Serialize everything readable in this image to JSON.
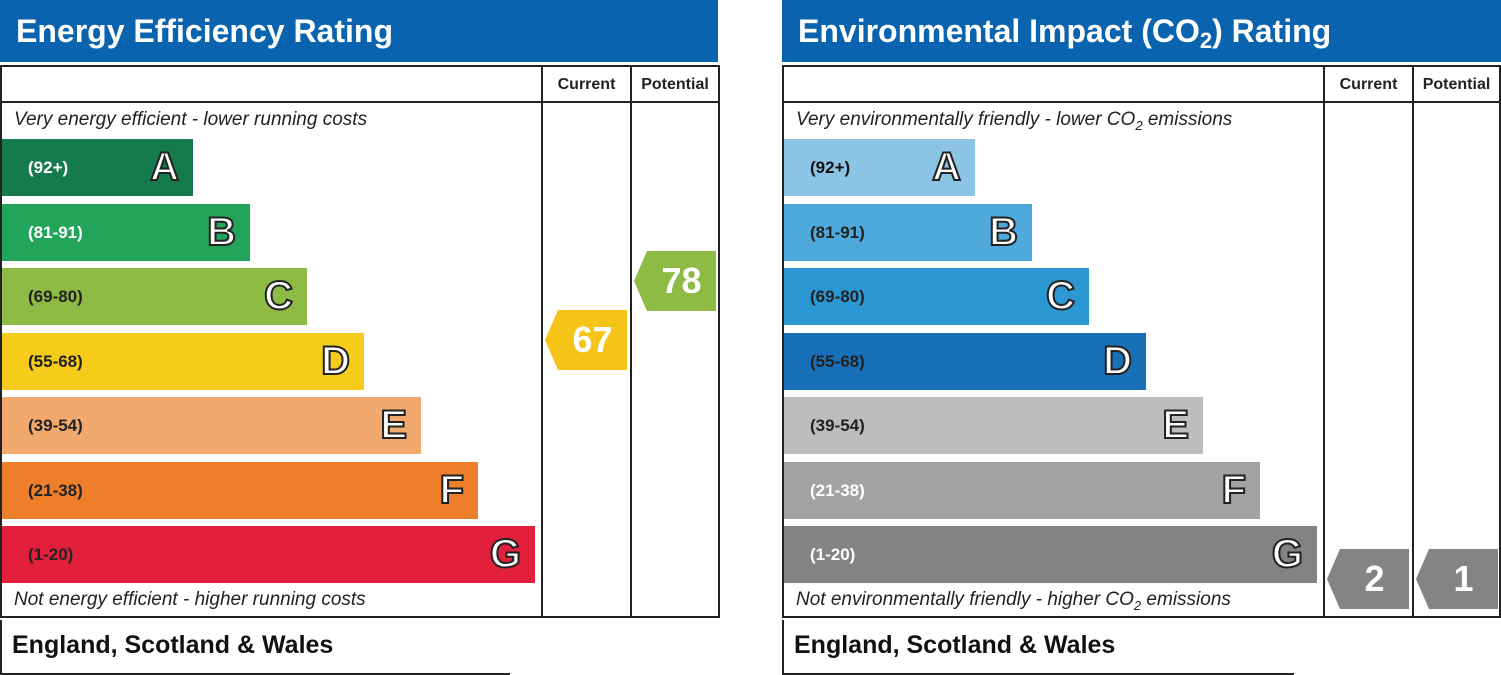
{
  "chart_data": [
    {
      "type": "bar",
      "title": "Energy Efficiency Rating",
      "columns": [
        "Current",
        "Potential"
      ],
      "top_text": "Very energy efficient - lower running costs",
      "bottom_text": "Not energy efficient - higher running costs",
      "footer": "England, Scotland & Wales",
      "bands": [
        {
          "letter": "A",
          "range": "(92+)",
          "color": "#157a4e",
          "text_color": "#ffffff"
        },
        {
          "letter": "B",
          "range": "(81-91)",
          "color": "#22a55a",
          "text_color": "#ffffff"
        },
        {
          "letter": "C",
          "range": "(69-80)",
          "color": "#8dbb43",
          "text_color": "#222222"
        },
        {
          "letter": "D",
          "range": "(55-68)",
          "color": "#f5cc1a",
          "text_color": "#222222"
        },
        {
          "letter": "E",
          "range": "(39-54)",
          "color": "#f2a96e",
          "text_color": "#222222"
        },
        {
          "letter": "F",
          "range": "(21-38)",
          "color": "#ed7f2a",
          "text_color": "#222222"
        },
        {
          "letter": "G",
          "range": "(1-20)",
          "color": "#e3203c",
          "text_color": "#222222"
        }
      ],
      "current": {
        "value": 67,
        "band": "D",
        "color": "#f5c417"
      },
      "potential": {
        "value": 78,
        "band": "C",
        "color": "#8dbb43"
      }
    },
    {
      "type": "bar",
      "title": "Environmental Impact (CO",
      "title_sub": "2",
      "title_end": ") Rating",
      "columns": [
        "Current",
        "Potential"
      ],
      "top_text": "Very environmentally friendly - lower CO",
      "top_text_sub": "2",
      "top_text_end": " emissions",
      "bottom_text": "Not environmentally friendly - higher CO",
      "bottom_text_sub": "2",
      "bottom_text_end": " emissions",
      "footer": "England, Scotland & Wales",
      "bands": [
        {
          "letter": "A",
          "range": "(92+)",
          "color": "#8cc4e6",
          "text_color": "#111111"
        },
        {
          "letter": "B",
          "range": "(81-91)",
          "color": "#4fa9dc",
          "text_color": "#222222"
        },
        {
          "letter": "C",
          "range": "(69-80)",
          "color": "#2b98d3",
          "text_color": "#222222"
        },
        {
          "letter": "D",
          "range": "(55-68)",
          "color": "#1a70b8",
          "text_color": "#222222"
        },
        {
          "letter": "E",
          "range": "(39-54)",
          "color": "#bdbdbb",
          "text_color": "#222222"
        },
        {
          "letter": "F",
          "range": "(21-38)",
          "color": "#a2a2a0",
          "text_color": "#ffffff"
        },
        {
          "letter": "G",
          "range": "(1-20)",
          "color": "#838383",
          "text_color": "#ffffff"
        }
      ],
      "current": {
        "value": 2,
        "band": "G",
        "color": "#848484"
      },
      "potential": {
        "value": 1,
        "band": "G",
        "color": "#848484"
      }
    }
  ]
}
